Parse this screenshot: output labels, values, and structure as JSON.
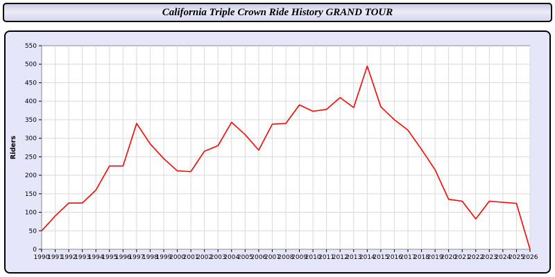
{
  "title": "California Triple Crown Ride History GRAND TOUR",
  "colors": {
    "panel_background": "#e6e6fa",
    "panel_border": "#000000",
    "plot_background": "#ffffff",
    "grid": "#d9d9d9",
    "line": "#ff0000",
    "axis_text": "#000000"
  },
  "chart_data": {
    "type": "line",
    "title": "California Triple Crown Ride History GRAND TOUR",
    "xlabel": "",
    "ylabel": "Riders",
    "ylim": [
      0,
      550
    ],
    "ytick_step": 50,
    "grid": true,
    "legend": "none",
    "categories": [
      "1990",
      "1991",
      "1992",
      "1993",
      "1994",
      "1995",
      "1996",
      "1997",
      "1998",
      "1999",
      "2000",
      "2001",
      "2002",
      "2003",
      "2004",
      "2005",
      "2006",
      "2007",
      "2008",
      "2009",
      "2010",
      "2011",
      "2012",
      "2013",
      "2014",
      "2015",
      "2016",
      "2017",
      "2018",
      "2019",
      "2020",
      "2021",
      "2022",
      "2023",
      "2024",
      "2025",
      "2026"
    ],
    "series": [
      {
        "name": "Riders",
        "color": "#ff0000",
        "values": [
          50,
          90,
          125,
          125,
          160,
          225,
          225,
          340,
          285,
          245,
          212,
          210,
          265,
          280,
          343,
          310,
          268,
          338,
          340,
          390,
          373,
          378,
          410,
          383,
          495,
          385,
          350,
          322,
          270,
          215,
          135,
          130,
          82,
          130,
          127,
          124,
          0
        ]
      }
    ]
  }
}
